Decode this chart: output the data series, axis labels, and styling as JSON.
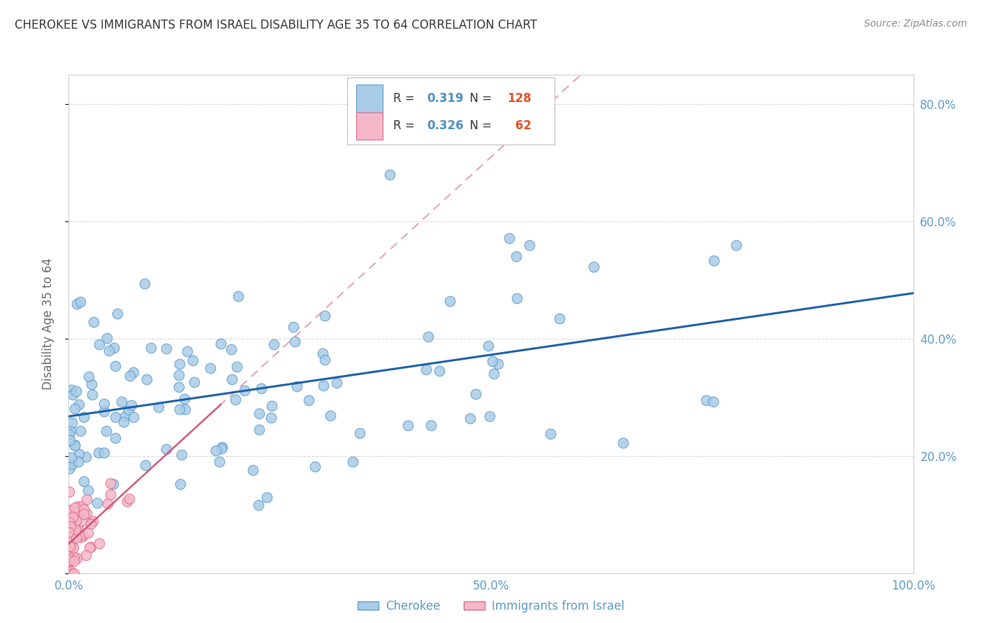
{
  "title": "CHEROKEE VS IMMIGRANTS FROM ISRAEL DISABILITY AGE 35 TO 64 CORRELATION CHART",
  "source": "Source: ZipAtlas.com",
  "ylabel": "Disability Age 35 to 64",
  "xlim": [
    0.0,
    1.0
  ],
  "ylim": [
    0.0,
    0.85
  ],
  "xtick_positions": [
    0.0,
    0.25,
    0.5,
    0.75,
    1.0
  ],
  "xticklabels": [
    "0.0%",
    "",
    "50.0%",
    "",
    "100.0%"
  ],
  "ytick_positions": [
    0.0,
    0.2,
    0.4,
    0.6,
    0.8
  ],
  "yticklabels": [
    "",
    "20.0%",
    "40.0%",
    "60.0%",
    "80.0%"
  ],
  "cherokee_color": "#a8cce8",
  "cherokee_edge_color": "#5b9ac8",
  "israel_color": "#f5b8c8",
  "israel_edge_color": "#e06888",
  "trend_cherokee_color": "#1a5fa8",
  "trend_israel_solid_color": "#d05878",
  "trend_israel_dash_color": "#e09aaa",
  "legend_R_cherokee": "0.319",
  "legend_N_cherokee": "128",
  "legend_R_israel": "0.326",
  "legend_N_israel": "62",
  "background_color": "#ffffff",
  "grid_color": "#cccccc",
  "tick_color": "#5b9ac8",
  "label_color": "#666666",
  "title_color": "#333333",
  "source_color": "#888888"
}
